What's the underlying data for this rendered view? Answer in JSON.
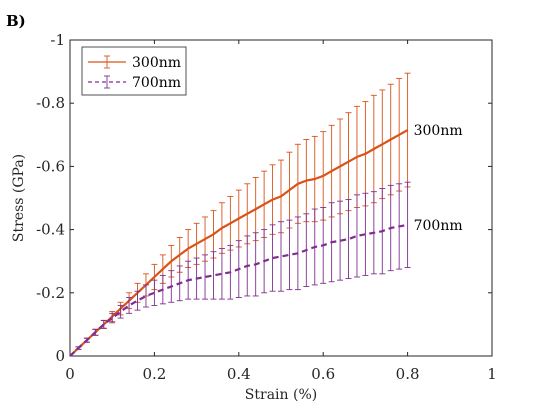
{
  "panel_label": "B)",
  "chart_data": {
    "type": "line",
    "title": "",
    "xlabel": "Strain (%)",
    "ylabel": "Stress (GPa)",
    "xlim": [
      0,
      1
    ],
    "ylim": [
      0,
      -1
    ],
    "x_ticks": [
      "0",
      "0.2",
      "0.4",
      "0.6",
      "0.8",
      "1"
    ],
    "x_tick_values": [
      0,
      0.2,
      0.4,
      0.6,
      0.8,
      1
    ],
    "y_ticks": [
      "0",
      "-0.2",
      "-0.4",
      "-0.6",
      "-0.8",
      "-1"
    ],
    "y_tick_values": [
      0,
      -0.2,
      -0.4,
      -0.6,
      -0.8,
      -1
    ],
    "grid": false,
    "legend_position": "top-left",
    "series": [
      {
        "name": "300nm",
        "annotation": "300nm",
        "color": "#d95319",
        "line_style": "solid",
        "x": [
          0,
          0.02,
          0.04,
          0.06,
          0.08,
          0.1,
          0.12,
          0.14,
          0.16,
          0.18,
          0.2,
          0.22,
          0.24,
          0.26,
          0.28,
          0.3,
          0.32,
          0.34,
          0.36,
          0.38,
          0.4,
          0.42,
          0.44,
          0.46,
          0.48,
          0.5,
          0.52,
          0.54,
          0.56,
          0.58,
          0.6,
          0.62,
          0.64,
          0.66,
          0.68,
          0.7,
          0.72,
          0.74,
          0.76,
          0.78,
          0.8
        ],
        "y": [
          0,
          -0.025,
          -0.05,
          -0.075,
          -0.1,
          -0.125,
          -0.15,
          -0.175,
          -0.2,
          -0.225,
          -0.25,
          -0.275,
          -0.3,
          -0.32,
          -0.34,
          -0.355,
          -0.37,
          -0.385,
          -0.405,
          -0.42,
          -0.435,
          -0.45,
          -0.465,
          -0.48,
          -0.495,
          -0.505,
          -0.525,
          -0.545,
          -0.555,
          -0.56,
          -0.57,
          -0.585,
          -0.6,
          -0.615,
          -0.63,
          -0.64,
          -0.655,
          -0.67,
          -0.685,
          -0.7,
          -0.715
        ],
        "error": [
          0,
          0.004,
          0.007,
          0.01,
          0.013,
          0.016,
          0.02,
          0.025,
          0.03,
          0.035,
          0.04,
          0.045,
          0.05,
          0.055,
          0.06,
          0.065,
          0.07,
          0.075,
          0.08,
          0.085,
          0.09,
          0.095,
          0.1,
          0.105,
          0.11,
          0.115,
          0.12,
          0.125,
          0.13,
          0.135,
          0.14,
          0.145,
          0.15,
          0.155,
          0.16,
          0.165,
          0.17,
          0.172,
          0.175,
          0.178,
          0.18
        ]
      },
      {
        "name": "700nm",
        "annotation": "700nm",
        "color": "#7e2f8e",
        "line_style": "dashed",
        "x": [
          0,
          0.02,
          0.04,
          0.06,
          0.08,
          0.1,
          0.12,
          0.14,
          0.16,
          0.18,
          0.2,
          0.22,
          0.24,
          0.26,
          0.28,
          0.3,
          0.32,
          0.34,
          0.36,
          0.38,
          0.4,
          0.42,
          0.44,
          0.46,
          0.48,
          0.5,
          0.52,
          0.54,
          0.56,
          0.58,
          0.6,
          0.62,
          0.64,
          0.66,
          0.68,
          0.7,
          0.72,
          0.74,
          0.76,
          0.78,
          0.8
        ],
        "y": [
          0,
          -0.025,
          -0.05,
          -0.075,
          -0.1,
          -0.12,
          -0.14,
          -0.16,
          -0.175,
          -0.19,
          -0.2,
          -0.21,
          -0.22,
          -0.23,
          -0.24,
          -0.245,
          -0.25,
          -0.255,
          -0.26,
          -0.265,
          -0.275,
          -0.285,
          -0.29,
          -0.3,
          -0.31,
          -0.315,
          -0.32,
          -0.325,
          -0.335,
          -0.345,
          -0.35,
          -0.36,
          -0.365,
          -0.37,
          -0.38,
          -0.385,
          -0.39,
          -0.395,
          -0.405,
          -0.41,
          -0.415
        ],
        "error": [
          0,
          0.004,
          0.006,
          0.009,
          0.012,
          0.015,
          0.02,
          0.025,
          0.03,
          0.035,
          0.04,
          0.045,
          0.05,
          0.055,
          0.06,
          0.065,
          0.07,
          0.075,
          0.08,
          0.085,
          0.09,
          0.095,
          0.1,
          0.1,
          0.105,
          0.11,
          0.11,
          0.115,
          0.115,
          0.12,
          0.12,
          0.125,
          0.125,
          0.125,
          0.13,
          0.13,
          0.13,
          0.135,
          0.135,
          0.135,
          0.135
        ]
      }
    ]
  }
}
